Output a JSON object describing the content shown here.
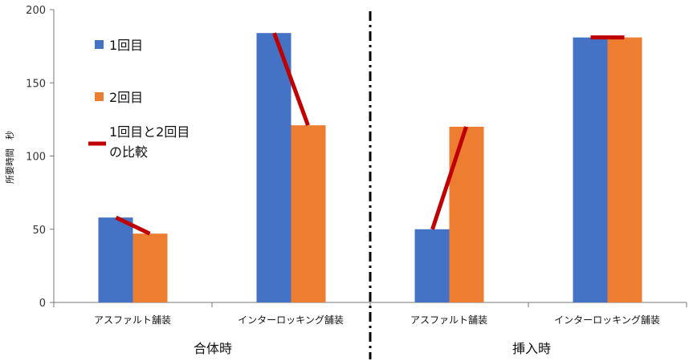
{
  "chart_data": {
    "type": "bar",
    "ylabel": "所要時間　秒",
    "ylim": [
      0,
      200
    ],
    "yticks": [
      0,
      50,
      100,
      150,
      200
    ],
    "grid": false,
    "legend_position": "top-left",
    "groups": [
      {
        "label": "合体時",
        "categories": [
          "アスファルト舗装",
          "インターロッキング舗装"
        ]
      },
      {
        "label": "挿入時",
        "categories": [
          "アスファルト舗装",
          "インターロッキング舗装"
        ]
      }
    ],
    "series": [
      {
        "name": "1回目",
        "color": "#4472C4",
        "values": [
          58,
          184,
          50,
          181
        ]
      },
      {
        "name": "2回目",
        "color": "#ED7D31",
        "values": [
          47,
          121,
          120,
          181
        ]
      }
    ],
    "comparison": {
      "name_line1": "1回目と2回目",
      "name_line2": "の比較",
      "color": "#C00000"
    }
  }
}
